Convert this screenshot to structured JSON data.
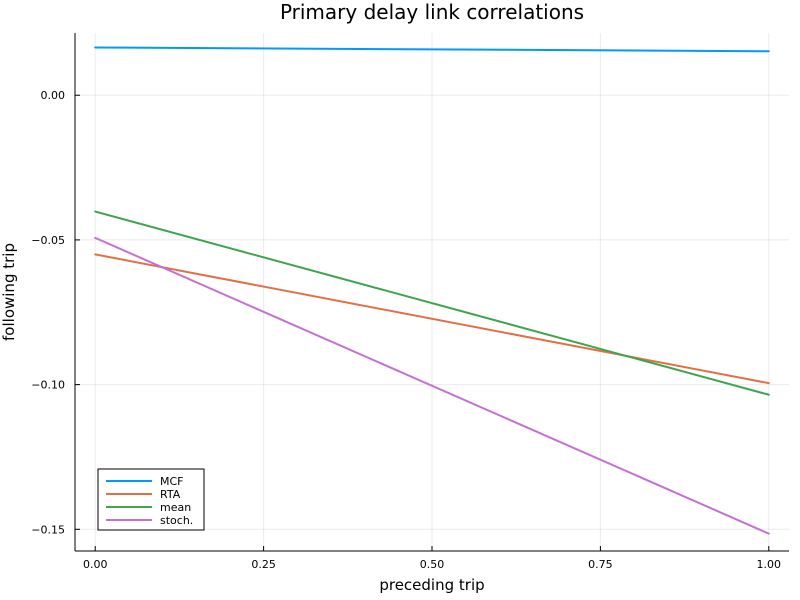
{
  "chart_data": {
    "type": "line",
    "title": "Primary delay link correlations",
    "xlabel": "preceding trip",
    "ylabel": "following trip",
    "xlim": [
      -0.03,
      1.03
    ],
    "ylim": [
      -0.1575,
      0.0215
    ],
    "xticks": [
      0.0,
      0.25,
      0.5,
      0.75,
      1.0
    ],
    "xtick_labels": [
      "0.00",
      "0.25",
      "0.50",
      "0.75",
      "1.00"
    ],
    "yticks": [
      0.0,
      -0.05,
      -0.1,
      -0.15
    ],
    "ytick_labels": [
      "0.00",
      "−0.05",
      "−0.10",
      "−0.15"
    ],
    "grid": true,
    "legend_position": "bottom-left",
    "series": [
      {
        "name": "MCF",
        "color": "#009AFA",
        "x": [
          0,
          1
        ],
        "y": [
          0.0165,
          0.0152
        ]
      },
      {
        "name": "RTA",
        "color": "#E36F47",
        "x": [
          0,
          1
        ],
        "y": [
          -0.055,
          -0.0995
        ]
      },
      {
        "name": "mean",
        "color": "#3EA44E",
        "x": [
          0,
          1
        ],
        "y": [
          -0.0402,
          -0.1035
        ]
      },
      {
        "name": "stoch.",
        "color": "#C371D2",
        "x": [
          0,
          1
        ],
        "y": [
          -0.0493,
          -0.1515
        ]
      }
    ]
  }
}
